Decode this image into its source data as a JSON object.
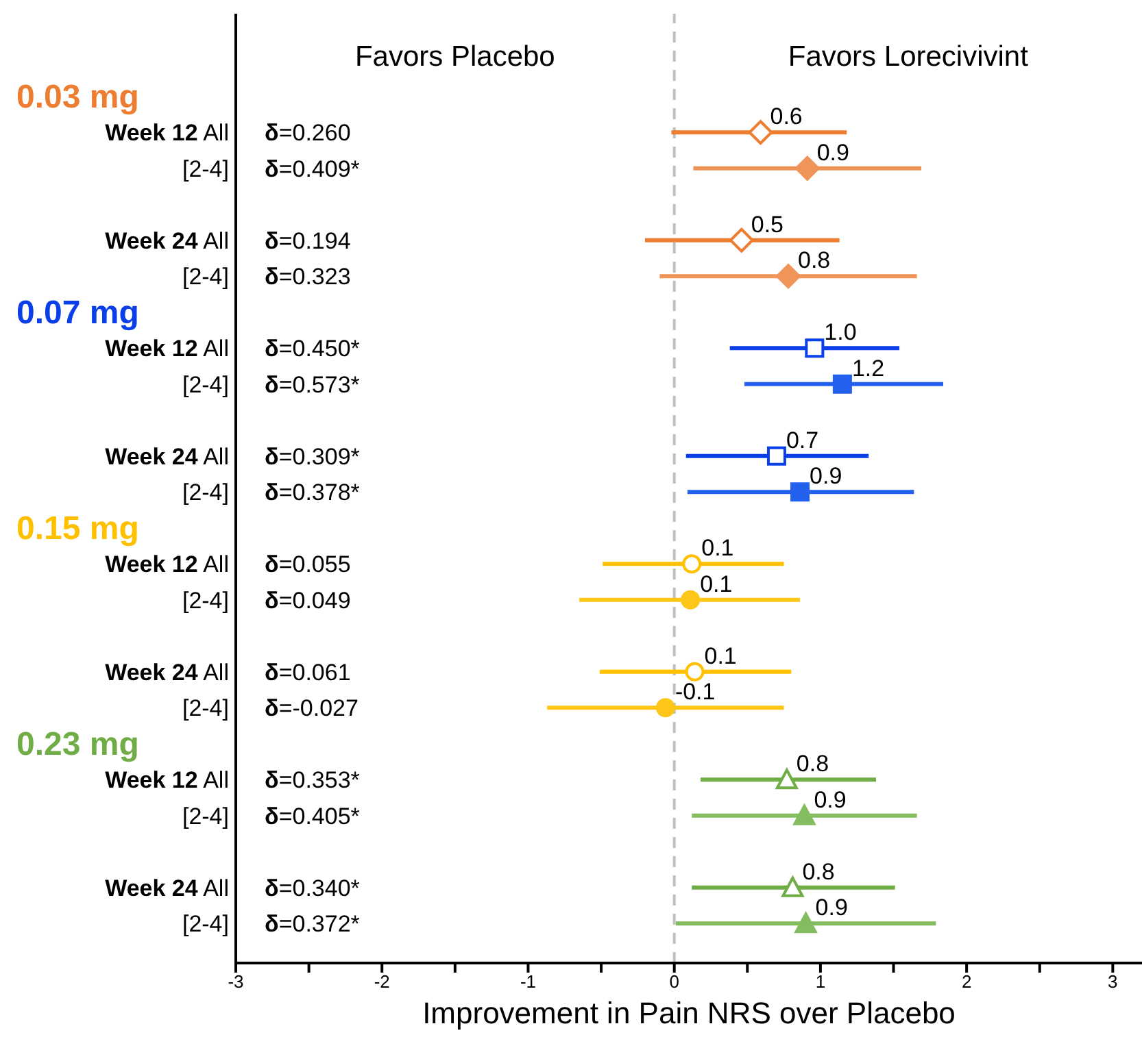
{
  "chart_data": {
    "type": "scatter",
    "orientation": "horizontal",
    "xlabel": "Improvement in Pain NRS over Placebo",
    "categories": [
      null,
      "Week 12 All",
      "[2-4]",
      null,
      "Week 24 All",
      "[2-4]",
      null,
      "Week 12 All",
      "[2-4]",
      null,
      "Week 24 All",
      "[2-4]",
      null,
      "Week 12 All",
      "[2-4]",
      null,
      "Week 24 All",
      "[2-4]",
      null,
      "Week 12 All",
      "[2-4]",
      null,
      "Week 24 All",
      "[2-4]"
    ],
    "y2_categories": [
      null,
      "δ=0.260",
      "δ=0.409*",
      null,
      "δ=0.194",
      "δ=0.323",
      null,
      "δ=0.450*",
      "δ=0.573*",
      null,
      "δ=0.309*",
      "δ=0.378*",
      null,
      "δ=0.055",
      "δ=0.049",
      null,
      "δ=0.061",
      "δ=-0.027",
      null,
      "δ=0.353*",
      "δ=0.405*",
      null,
      "δ=0.340*",
      "δ=0.372*"
    ],
    "series": [
      {
        "name": "0.03 mg",
        "color": "#ed7d31",
        "marker": "diamond",
        "values": [
          null,
          0.59,
          null,
          null,
          0.46,
          null,
          null,
          null,
          null,
          null,
          null,
          null,
          null,
          null,
          null,
          null,
          null,
          null,
          null,
          null,
          null,
          null,
          null,
          null
        ],
        "errors": [
          null,
          [
            -0.02,
            1.18
          ],
          null,
          null,
          [
            -0.2,
            1.13
          ],
          null,
          null,
          null,
          null,
          null,
          null,
          null,
          null,
          null,
          null,
          null,
          null,
          null,
          null,
          null,
          null,
          null,
          null,
          null
        ],
        "value_labels": [
          null,
          "0.6",
          null,
          null,
          "0.5",
          null,
          null,
          null,
          null,
          null,
          null,
          null,
          null,
          null,
          null,
          null,
          null,
          null,
          null,
          null,
          null,
          null,
          null,
          null
        ]
      },
      {
        "color": "#f0955a",
        "marker": "diamond",
        "values": [
          null,
          null,
          0.91,
          null,
          null,
          0.78,
          null,
          null,
          null,
          null,
          null,
          null,
          null,
          null,
          null,
          null,
          null,
          null,
          null,
          null,
          null,
          null,
          null,
          null
        ],
        "errors": [
          null,
          null,
          [
            0.13,
            1.69
          ],
          null,
          null,
          [
            -0.1,
            1.66
          ],
          null,
          null,
          null,
          null,
          null,
          null,
          null,
          null,
          null,
          null,
          null,
          null,
          null,
          null,
          null,
          null,
          null,
          null
        ],
        "value_labels": [
          null,
          null,
          "0.9",
          null,
          null,
          "0.8",
          null,
          null,
          null,
          null,
          null,
          null,
          null,
          null,
          null,
          null,
          null,
          null,
          null,
          null,
          null,
          null,
          null,
          null
        ]
      },
      {
        "name": "0.07 mg",
        "color": "#0a3ee8",
        "marker": "square",
        "values": [
          null,
          null,
          null,
          null,
          null,
          null,
          null,
          0.96,
          null,
          null,
          0.7,
          null,
          null,
          null,
          null,
          null,
          null,
          null,
          null,
          null,
          null,
          null,
          null,
          null
        ],
        "errors": [
          null,
          null,
          null,
          null,
          null,
          null,
          null,
          [
            0.38,
            1.54
          ],
          null,
          null,
          [
            0.08,
            1.33
          ],
          null,
          null,
          null,
          null,
          null,
          null,
          null,
          null,
          null,
          null,
          null,
          null,
          null
        ],
        "value_labels": [
          null,
          null,
          null,
          null,
          null,
          null,
          null,
          "1.0",
          null,
          null,
          "0.7",
          null,
          null,
          null,
          null,
          null,
          null,
          null,
          null,
          null,
          null,
          null,
          null,
          null
        ]
      },
      {
        "color": "#2360ee",
        "marker": "square",
        "values": [
          null,
          null,
          null,
          null,
          null,
          null,
          null,
          null,
          1.15,
          null,
          null,
          0.86,
          null,
          null,
          null,
          null,
          null,
          null,
          null,
          null,
          null,
          null,
          null,
          null
        ],
        "errors": [
          null,
          null,
          null,
          null,
          null,
          null,
          null,
          null,
          [
            0.48,
            1.84
          ],
          null,
          null,
          [
            0.09,
            1.64
          ],
          null,
          null,
          null,
          null,
          null,
          null,
          null,
          null,
          null,
          null,
          null,
          null
        ],
        "value_labels": [
          null,
          null,
          null,
          null,
          null,
          null,
          null,
          null,
          "1.2",
          null,
          null,
          "0.9",
          null,
          null,
          null,
          null,
          null,
          null,
          null,
          null,
          null,
          null,
          null,
          null
        ]
      },
      {
        "name": "0.15 mg",
        "color": "#ffc000",
        "marker": "circle",
        "values": [
          null,
          null,
          null,
          null,
          null,
          null,
          null,
          null,
          null,
          null,
          null,
          null,
          null,
          0.12,
          null,
          null,
          0.14,
          null,
          null,
          null,
          null,
          null,
          null,
          null
        ],
        "errors": [
          null,
          null,
          null,
          null,
          null,
          null,
          null,
          null,
          null,
          null,
          null,
          null,
          null,
          [
            -0.49,
            0.75
          ],
          null,
          null,
          [
            -0.51,
            0.8
          ],
          null,
          null,
          null,
          null,
          null,
          null,
          null
        ],
        "value_labels": [
          null,
          null,
          null,
          null,
          null,
          null,
          null,
          null,
          null,
          null,
          null,
          null,
          null,
          "0.1",
          null,
          null,
          "0.1",
          null,
          null,
          null,
          null,
          null,
          null,
          null
        ]
      },
      {
        "color": "#ffc61a",
        "marker": "circle",
        "values": [
          null,
          null,
          null,
          null,
          null,
          null,
          null,
          null,
          null,
          null,
          null,
          null,
          null,
          null,
          0.11,
          null,
          null,
          -0.06,
          null,
          null,
          null,
          null,
          null,
          null
        ],
        "errors": [
          null,
          null,
          null,
          null,
          null,
          null,
          null,
          null,
          null,
          null,
          null,
          null,
          null,
          null,
          [
            -0.65,
            0.86
          ],
          null,
          null,
          [
            -0.87,
            0.75
          ],
          null,
          null,
          null,
          null,
          null,
          null
        ],
        "value_labels": [
          null,
          null,
          null,
          null,
          null,
          null,
          null,
          null,
          null,
          null,
          null,
          null,
          null,
          null,
          "0.1",
          null,
          null,
          "-0.1",
          null,
          null,
          null,
          null,
          null,
          null
        ]
      },
      {
        "name": "0.23 mg",
        "color": "#70ad47",
        "marker": "triangle",
        "values": [
          null,
          null,
          null,
          null,
          null,
          null,
          null,
          null,
          null,
          null,
          null,
          null,
          null,
          null,
          null,
          null,
          null,
          null,
          null,
          0.77,
          null,
          null,
          0.81,
          null
        ],
        "errors": [
          null,
          null,
          null,
          null,
          null,
          null,
          null,
          null,
          null,
          null,
          null,
          null,
          null,
          null,
          null,
          null,
          null,
          null,
          null,
          [
            0.18,
            1.38
          ],
          null,
          null,
          [
            0.12,
            1.51
          ],
          null
        ],
        "value_labels": [
          null,
          null,
          null,
          null,
          null,
          null,
          null,
          null,
          null,
          null,
          null,
          null,
          null,
          null,
          null,
          null,
          null,
          null,
          null,
          "0.8",
          null,
          null,
          "0.8",
          null
        ]
      },
      {
        "color": "#84bd5f",
        "marker": "triangle",
        "values": [
          null,
          null,
          null,
          null,
          null,
          null,
          null,
          null,
          null,
          null,
          null,
          null,
          null,
          null,
          null,
          null,
          null,
          null,
          null,
          null,
          0.89,
          null,
          null,
          0.9
        ],
        "errors": [
          null,
          null,
          null,
          null,
          null,
          null,
          null,
          null,
          null,
          null,
          null,
          null,
          null,
          null,
          null,
          null,
          null,
          null,
          null,
          null,
          [
            0.12,
            1.66
          ],
          null,
          null,
          [
            0.01,
            1.79
          ]
        ],
        "value_labels": [
          null,
          null,
          null,
          null,
          null,
          null,
          null,
          null,
          null,
          null,
          null,
          null,
          null,
          null,
          null,
          null,
          null,
          null,
          null,
          null,
          "0.9",
          null,
          null,
          "0.9"
        ]
      }
    ],
    "xlim": [
      -3,
      3.2
    ],
    "xticks": [
      -3,
      {
        "value": -2.5,
        "label": null
      },
      -2,
      {
        "value": -1.5,
        "label": null
      },
      -1,
      {
        "value": -0.5,
        "label": null
      },
      0,
      {
        "value": 0.5,
        "label": null
      },
      1,
      {
        "value": 1.5,
        "label": null
      },
      2,
      {
        "value": 2.5,
        "label": null
      },
      3
    ],
    "ref_lines": [
      {
        "axis": "x",
        "value": 0,
        "color": "#bfbfbf",
        "line_style": "dashed"
      }
    ],
    "annotations": [
      "Favors Placebo",
      "Favors Lorecivivint"
    ]
  }
}
